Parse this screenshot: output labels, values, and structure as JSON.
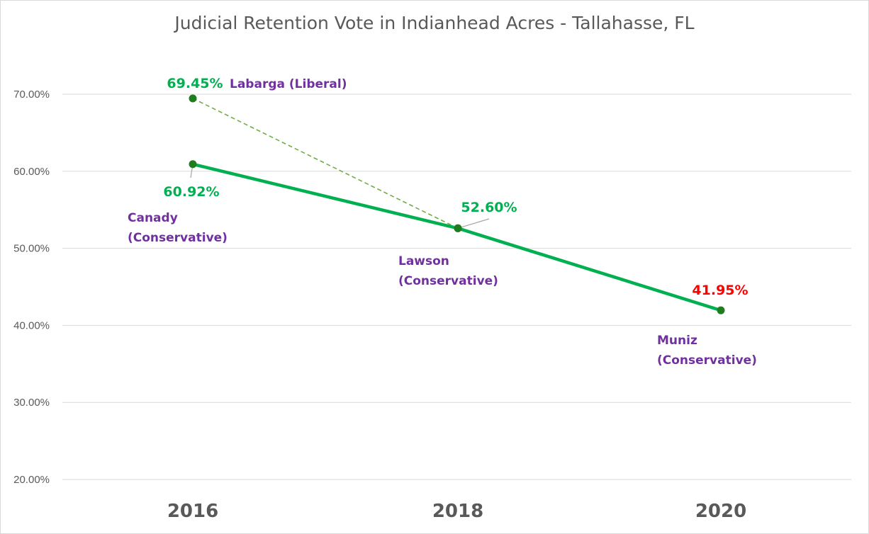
{
  "chart_data": {
    "type": "line",
    "title": "Judicial Retention Vote in Indianhead Acres - Tallahasse, FL",
    "xlabel": "",
    "ylabel": "",
    "categories": [
      "2016",
      "2018",
      "2020"
    ],
    "ylim": [
      20,
      70
    ],
    "yticks": [
      "20.00%",
      "30.00%",
      "40.00%",
      "50.00%",
      "60.00%",
      "70.00%"
    ],
    "grid": true,
    "series": [
      {
        "style": "solid",
        "color": "#00b050",
        "values": [
          60.92,
          52.6,
          41.95
        ]
      },
      {
        "style": "dashed",
        "color": "#70ad47",
        "values": [
          69.45,
          52.6,
          null
        ]
      }
    ],
    "annotations": [
      {
        "category": "2016",
        "value": 69.45,
        "value_label": "69.45%",
        "name_lines": [
          "Labarga (Liberal)"
        ],
        "value_color": "#00b050"
      },
      {
        "category": "2016",
        "value": 60.92,
        "value_label": "60.92%",
        "name_lines": [
          "Canady",
          "(Conservative)"
        ],
        "value_color": "#00b050"
      },
      {
        "category": "2018",
        "value": 52.6,
        "value_label": "52.60%",
        "name_lines": [
          "Lawson",
          "(Conservative)"
        ],
        "value_color": "#00b050"
      },
      {
        "category": "2020",
        "value": 41.95,
        "value_label": "41.95%",
        "name_lines": [
          "Muniz",
          "(Conservative)"
        ],
        "value_color": "#ff0000"
      }
    ],
    "marker_color": "#1e7d1e",
    "name_color": "#7030a0"
  }
}
